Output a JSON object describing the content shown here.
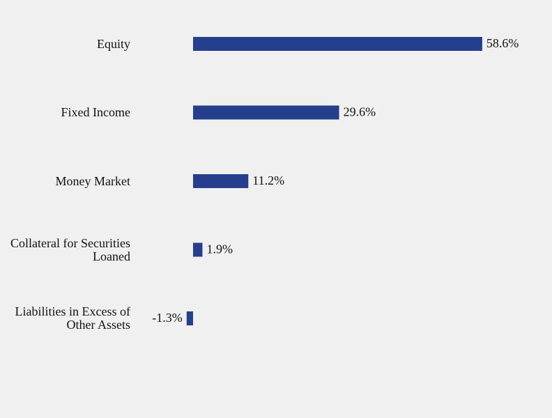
{
  "chart_data": {
    "type": "bar",
    "orientation": "horizontal",
    "categories": [
      "Equity",
      "Fixed Income",
      "Money Market",
      "Collateral for Securities Loaned",
      "Liabilities in Excess of Other Assets"
    ],
    "values": [
      58.6,
      29.6,
      11.2,
      1.9,
      -1.3
    ],
    "value_labels": [
      "58.6%",
      "29.6%",
      "11.2%",
      "1.9%",
      "-1.3%"
    ],
    "color": "#263f8c"
  }
}
